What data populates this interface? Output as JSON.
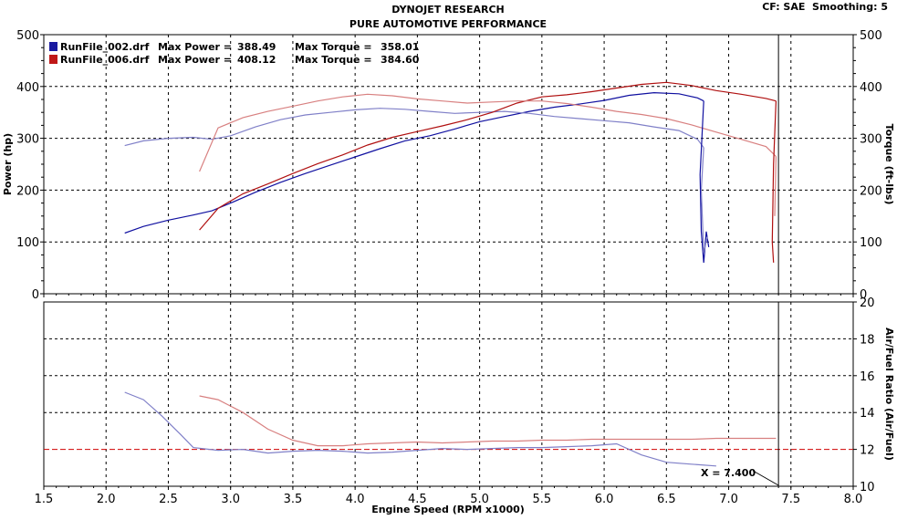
{
  "header": {
    "title": "DYNOJET RESEARCH",
    "subtitle": "PURE AUTOMOTIVE PERFORMANCE",
    "settings": "CF: SAE  Smoothing: 5"
  },
  "colors": {
    "run1": "#1010a0",
    "run1_light": "#8080c8",
    "run2": "#b01010",
    "run2_light": "#d88080",
    "grid": "#000000",
    "frame": "#000000"
  },
  "legend": [
    {
      "name": "RunFile_002.drf",
      "power_label": "Max Power =",
      "power": "388.49",
      "torque_label": "Max Torque =",
      "torque": "358.01",
      "color": "#1a1aa0"
    },
    {
      "name": "RunFile_006.drf",
      "power_label": "Max Power =",
      "power": "408.12",
      "torque_label": "Max Torque =",
      "torque": "384.60",
      "color": "#c01818"
    }
  ],
  "cursor": {
    "label": "X = 7.400",
    "x": 7.4
  },
  "chart_data": [
    {
      "type": "line",
      "title": "",
      "xlabel": "Engine Speed (RPM x1000)",
      "ylabel": "Power (hp)",
      "y2label": "Torque (ft-lbs)",
      "xlim": [
        1.5,
        8.0
      ],
      "ylim": [
        0,
        500
      ],
      "y2lim": [
        0,
        500
      ],
      "x_ticks": [
        "1.5",
        "2.0",
        "2.5",
        "3.0",
        "3.5",
        "4.0",
        "4.5",
        "5.0",
        "5.5",
        "6.0",
        "6.5",
        "7.0",
        "7.5",
        "8.0"
      ],
      "y_ticks": [
        "0",
        "100",
        "200",
        "300",
        "400",
        "500"
      ],
      "y2_ticks": [
        "0",
        "100",
        "200",
        "300",
        "400",
        "500"
      ],
      "grid": true,
      "series": [
        {
          "name": "RunFile_002.drf",
          "kind": "power",
          "color_key": "run1",
          "x": [
            2.15,
            2.3,
            2.5,
            2.7,
            2.85,
            3.0,
            3.2,
            3.4,
            3.6,
            3.8,
            4.0,
            4.2,
            4.4,
            4.6,
            4.8,
            5.0,
            5.2,
            5.4,
            5.6,
            5.8,
            6.0,
            6.2,
            6.4,
            6.6,
            6.75,
            6.8
          ],
          "y": [
            117,
            130,
            142,
            152,
            160,
            175,
            196,
            215,
            232,
            248,
            264,
            280,
            295,
            305,
            318,
            332,
            342,
            352,
            360,
            366,
            373,
            383,
            388,
            386,
            378,
            372
          ]
        },
        {
          "name": "RunFile_002.drf",
          "kind": "torque",
          "color_key": "run1_light",
          "x": [
            2.15,
            2.3,
            2.5,
            2.7,
            2.85,
            3.0,
            3.2,
            3.4,
            3.6,
            3.8,
            4.0,
            4.2,
            4.4,
            4.6,
            4.8,
            5.0,
            5.2,
            5.4,
            5.6,
            5.8,
            6.0,
            6.2,
            6.4,
            6.6,
            6.75,
            6.8
          ],
          "y": [
            286,
            295,
            300,
            302,
            298,
            305,
            322,
            336,
            345,
            350,
            355,
            358,
            356,
            352,
            348,
            350,
            352,
            348,
            342,
            338,
            334,
            330,
            322,
            315,
            298,
            282
          ]
        },
        {
          "name": "RunFile_006.drf",
          "kind": "power",
          "color_key": "run2",
          "x": [
            2.75,
            2.9,
            3.1,
            3.3,
            3.5,
            3.7,
            3.9,
            4.1,
            4.3,
            4.5,
            4.7,
            4.9,
            5.1,
            5.3,
            5.5,
            5.7,
            5.9,
            6.1,
            6.3,
            6.5,
            6.7,
            6.9,
            7.1,
            7.3,
            7.38
          ],
          "y": [
            123,
            165,
            193,
            212,
            232,
            251,
            268,
            287,
            302,
            313,
            324,
            336,
            350,
            368,
            380,
            384,
            390,
            397,
            404,
            408,
            402,
            392,
            385,
            377,
            372
          ]
        },
        {
          "name": "RunFile_006.drf",
          "kind": "torque",
          "color_key": "run2_light",
          "x": [
            2.75,
            2.9,
            3.1,
            3.3,
            3.5,
            3.7,
            3.9,
            4.1,
            4.3,
            4.5,
            4.7,
            4.9,
            5.1,
            5.3,
            5.5,
            5.7,
            5.9,
            6.1,
            6.3,
            6.5,
            6.7,
            6.9,
            7.1,
            7.3,
            7.38
          ],
          "y": [
            236,
            320,
            340,
            352,
            362,
            372,
            380,
            385,
            382,
            376,
            372,
            368,
            370,
            372,
            372,
            367,
            360,
            352,
            346,
            338,
            326,
            312,
            298,
            284,
            265
          ]
        }
      ]
    },
    {
      "type": "line",
      "title": "",
      "xlabel": "Engine Speed (RPM x1000)",
      "y2label": "Air/Fuel Ratio (Air/Fuel)",
      "xlim": [
        1.5,
        8.0
      ],
      "ylim": [
        10,
        20
      ],
      "y2_ticks": [
        "10",
        "12",
        "14",
        "16",
        "18",
        "20"
      ],
      "reference_line": 12,
      "grid": true,
      "series": [
        {
          "name": "RunFile_002.drf",
          "kind": "afr",
          "color_key": "run1_light",
          "x": [
            2.15,
            2.3,
            2.45,
            2.6,
            2.7,
            2.9,
            3.1,
            3.3,
            3.5,
            3.7,
            3.9,
            4.1,
            4.3,
            4.5,
            4.7,
            4.9,
            5.1,
            5.3,
            5.5,
            5.7,
            5.9,
            6.1,
            6.3,
            6.5,
            6.7,
            6.9
          ],
          "y": [
            15.1,
            14.7,
            13.8,
            12.8,
            12.1,
            11.95,
            12.0,
            11.8,
            11.9,
            11.95,
            11.9,
            11.8,
            11.85,
            11.95,
            12.05,
            12.0,
            12.05,
            12.1,
            12.1,
            12.15,
            12.2,
            12.3,
            11.7,
            11.3,
            11.2,
            11.1
          ]
        },
        {
          "name": "RunFile_006.drf",
          "kind": "afr",
          "color_key": "run2_light",
          "x": [
            2.75,
            2.9,
            3.1,
            3.3,
            3.5,
            3.7,
            3.9,
            4.1,
            4.3,
            4.5,
            4.7,
            4.9,
            5.1,
            5.3,
            5.5,
            5.7,
            5.9,
            6.1,
            6.3,
            6.5,
            6.7,
            6.9,
            7.1,
            7.3,
            7.38
          ],
          "y": [
            14.9,
            14.7,
            14.0,
            13.1,
            12.5,
            12.2,
            12.2,
            12.3,
            12.35,
            12.4,
            12.35,
            12.4,
            12.45,
            12.45,
            12.5,
            12.5,
            12.55,
            12.55,
            12.55,
            12.55,
            12.55,
            12.6,
            12.6,
            12.6,
            12.6
          ]
        }
      ]
    }
  ]
}
